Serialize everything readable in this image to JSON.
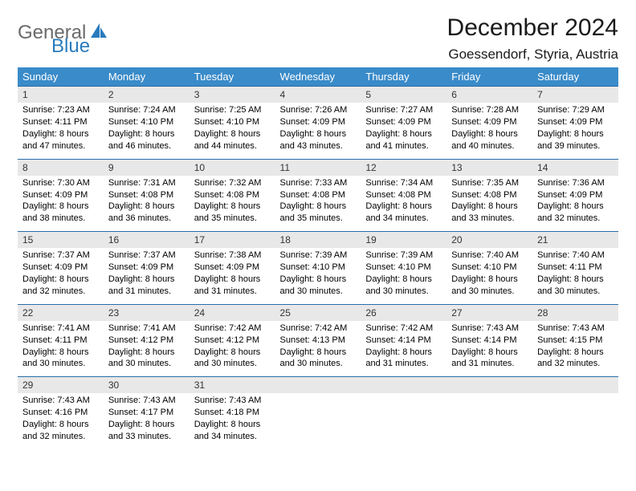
{
  "logo": {
    "word1": "General",
    "word2": "Blue"
  },
  "title": "December 2024",
  "subtitle": "Goessendorf, Styria, Austria",
  "colors": {
    "header_bg": "#3a8bc9",
    "header_text": "#ffffff",
    "daynum_bg": "#e8e8e8",
    "row_divider": "#2a6ca8",
    "body_text": "#000000",
    "logo_gray": "#6a6a6a",
    "logo_blue": "#2a7bbd"
  },
  "columns": [
    "Sunday",
    "Monday",
    "Tuesday",
    "Wednesday",
    "Thursday",
    "Friday",
    "Saturday"
  ],
  "days": [
    {
      "n": "1",
      "sr": "Sunrise: 7:23 AM",
      "ss": "Sunset: 4:11 PM",
      "d1": "Daylight: 8 hours",
      "d2": "and 47 minutes."
    },
    {
      "n": "2",
      "sr": "Sunrise: 7:24 AM",
      "ss": "Sunset: 4:10 PM",
      "d1": "Daylight: 8 hours",
      "d2": "and 46 minutes."
    },
    {
      "n": "3",
      "sr": "Sunrise: 7:25 AM",
      "ss": "Sunset: 4:10 PM",
      "d1": "Daylight: 8 hours",
      "d2": "and 44 minutes."
    },
    {
      "n": "4",
      "sr": "Sunrise: 7:26 AM",
      "ss": "Sunset: 4:09 PM",
      "d1": "Daylight: 8 hours",
      "d2": "and 43 minutes."
    },
    {
      "n": "5",
      "sr": "Sunrise: 7:27 AM",
      "ss": "Sunset: 4:09 PM",
      "d1": "Daylight: 8 hours",
      "d2": "and 41 minutes."
    },
    {
      "n": "6",
      "sr": "Sunrise: 7:28 AM",
      "ss": "Sunset: 4:09 PM",
      "d1": "Daylight: 8 hours",
      "d2": "and 40 minutes."
    },
    {
      "n": "7",
      "sr": "Sunrise: 7:29 AM",
      "ss": "Sunset: 4:09 PM",
      "d1": "Daylight: 8 hours",
      "d2": "and 39 minutes."
    },
    {
      "n": "8",
      "sr": "Sunrise: 7:30 AM",
      "ss": "Sunset: 4:09 PM",
      "d1": "Daylight: 8 hours",
      "d2": "and 38 minutes."
    },
    {
      "n": "9",
      "sr": "Sunrise: 7:31 AM",
      "ss": "Sunset: 4:08 PM",
      "d1": "Daylight: 8 hours",
      "d2": "and 36 minutes."
    },
    {
      "n": "10",
      "sr": "Sunrise: 7:32 AM",
      "ss": "Sunset: 4:08 PM",
      "d1": "Daylight: 8 hours",
      "d2": "and 35 minutes."
    },
    {
      "n": "11",
      "sr": "Sunrise: 7:33 AM",
      "ss": "Sunset: 4:08 PM",
      "d1": "Daylight: 8 hours",
      "d2": "and 35 minutes."
    },
    {
      "n": "12",
      "sr": "Sunrise: 7:34 AM",
      "ss": "Sunset: 4:08 PM",
      "d1": "Daylight: 8 hours",
      "d2": "and 34 minutes."
    },
    {
      "n": "13",
      "sr": "Sunrise: 7:35 AM",
      "ss": "Sunset: 4:08 PM",
      "d1": "Daylight: 8 hours",
      "d2": "and 33 minutes."
    },
    {
      "n": "14",
      "sr": "Sunrise: 7:36 AM",
      "ss": "Sunset: 4:09 PM",
      "d1": "Daylight: 8 hours",
      "d2": "and 32 minutes."
    },
    {
      "n": "15",
      "sr": "Sunrise: 7:37 AM",
      "ss": "Sunset: 4:09 PM",
      "d1": "Daylight: 8 hours",
      "d2": "and 32 minutes."
    },
    {
      "n": "16",
      "sr": "Sunrise: 7:37 AM",
      "ss": "Sunset: 4:09 PM",
      "d1": "Daylight: 8 hours",
      "d2": "and 31 minutes."
    },
    {
      "n": "17",
      "sr": "Sunrise: 7:38 AM",
      "ss": "Sunset: 4:09 PM",
      "d1": "Daylight: 8 hours",
      "d2": "and 31 minutes."
    },
    {
      "n": "18",
      "sr": "Sunrise: 7:39 AM",
      "ss": "Sunset: 4:10 PM",
      "d1": "Daylight: 8 hours",
      "d2": "and 30 minutes."
    },
    {
      "n": "19",
      "sr": "Sunrise: 7:39 AM",
      "ss": "Sunset: 4:10 PM",
      "d1": "Daylight: 8 hours",
      "d2": "and 30 minutes."
    },
    {
      "n": "20",
      "sr": "Sunrise: 7:40 AM",
      "ss": "Sunset: 4:10 PM",
      "d1": "Daylight: 8 hours",
      "d2": "and 30 minutes."
    },
    {
      "n": "21",
      "sr": "Sunrise: 7:40 AM",
      "ss": "Sunset: 4:11 PM",
      "d1": "Daylight: 8 hours",
      "d2": "and 30 minutes."
    },
    {
      "n": "22",
      "sr": "Sunrise: 7:41 AM",
      "ss": "Sunset: 4:11 PM",
      "d1": "Daylight: 8 hours",
      "d2": "and 30 minutes."
    },
    {
      "n": "23",
      "sr": "Sunrise: 7:41 AM",
      "ss": "Sunset: 4:12 PM",
      "d1": "Daylight: 8 hours",
      "d2": "and 30 minutes."
    },
    {
      "n": "24",
      "sr": "Sunrise: 7:42 AM",
      "ss": "Sunset: 4:12 PM",
      "d1": "Daylight: 8 hours",
      "d2": "and 30 minutes."
    },
    {
      "n": "25",
      "sr": "Sunrise: 7:42 AM",
      "ss": "Sunset: 4:13 PM",
      "d1": "Daylight: 8 hours",
      "d2": "and 30 minutes."
    },
    {
      "n": "26",
      "sr": "Sunrise: 7:42 AM",
      "ss": "Sunset: 4:14 PM",
      "d1": "Daylight: 8 hours",
      "d2": "and 31 minutes."
    },
    {
      "n": "27",
      "sr": "Sunrise: 7:43 AM",
      "ss": "Sunset: 4:14 PM",
      "d1": "Daylight: 8 hours",
      "d2": "and 31 minutes."
    },
    {
      "n": "28",
      "sr": "Sunrise: 7:43 AM",
      "ss": "Sunset: 4:15 PM",
      "d1": "Daylight: 8 hours",
      "d2": "and 32 minutes."
    },
    {
      "n": "29",
      "sr": "Sunrise: 7:43 AM",
      "ss": "Sunset: 4:16 PM",
      "d1": "Daylight: 8 hours",
      "d2": "and 32 minutes."
    },
    {
      "n": "30",
      "sr": "Sunrise: 7:43 AM",
      "ss": "Sunset: 4:17 PM",
      "d1": "Daylight: 8 hours",
      "d2": "and 33 minutes."
    },
    {
      "n": "31",
      "sr": "Sunrise: 7:43 AM",
      "ss": "Sunset: 4:18 PM",
      "d1": "Daylight: 8 hours",
      "d2": "and 34 minutes."
    }
  ]
}
